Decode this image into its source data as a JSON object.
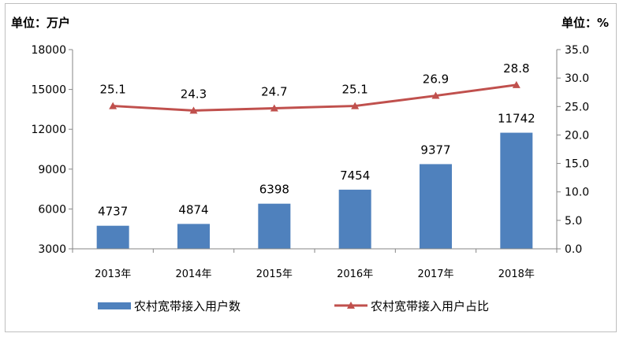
{
  "chart_data": {
    "type": "bar+line",
    "left_unit": "单位：万户",
    "right_unit": "单位：%",
    "categories": [
      "2013年",
      "2014年",
      "2015年",
      "2016年",
      "2017年",
      "2018年"
    ],
    "bar_series": {
      "name": "农村宽带接入用户数",
      "values": [
        4737,
        4874,
        6398,
        7454,
        9377,
        11742
      ],
      "labels": [
        "4737",
        "4874",
        "6398",
        "7454",
        "9377",
        "11742"
      ],
      "color": "#4f81bd"
    },
    "line_series": {
      "name": "农村宽带接入用户占比",
      "values": [
        25.1,
        24.3,
        24.7,
        25.1,
        26.9,
        28.8
      ],
      "labels": [
        "25.1",
        "24.3",
        "24.7",
        "25.1",
        "26.9",
        "28.8"
      ],
      "color": "#c0504d"
    },
    "y_left": {
      "min": 3000,
      "max": 18000,
      "ticks": [
        "3000",
        "6000",
        "9000",
        "12000",
        "15000",
        "18000"
      ],
      "tick_values": [
        3000,
        6000,
        9000,
        12000,
        15000,
        18000
      ]
    },
    "y_right": {
      "min": 0,
      "max": 35,
      "ticks": [
        "0.0",
        "5.0",
        "10.0",
        "15.0",
        "20.0",
        "25.0",
        "30.0",
        "35.0"
      ],
      "tick_values": [
        0,
        5,
        10,
        15,
        20,
        25,
        30,
        35
      ]
    },
    "grid": false,
    "legend_position": "bottom"
  }
}
